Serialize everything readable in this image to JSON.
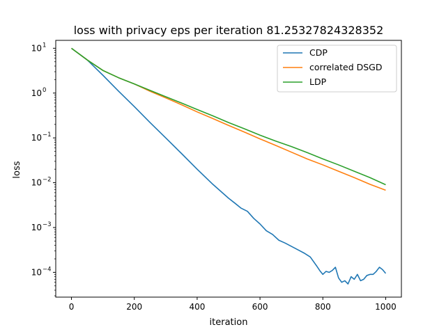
{
  "chart_data": {
    "type": "line",
    "title": "loss with privacy eps per iteration 81.25327824328352",
    "xlabel": "iteration",
    "ylabel": "loss",
    "xlim": [
      -50,
      1050
    ],
    "ylim": [
      2.8e-05,
      15
    ],
    "yscale": "log",
    "grid": false,
    "legend_position": "top-right",
    "x_ticks": [
      0,
      200,
      400,
      600,
      800,
      1000
    ],
    "x_tick_labels": [
      "0",
      "200",
      "400",
      "600",
      "800",
      "1000"
    ],
    "y_ticks": [
      0.0001,
      0.001,
      0.01,
      0.1,
      1,
      10
    ],
    "y_tick_labels": [
      "10",
      "10",
      "10",
      "10",
      "10",
      "10"
    ],
    "y_tick_exponents": [
      "−4",
      "−3",
      "−2",
      "−1",
      "0",
      "1"
    ],
    "series": [
      {
        "name": "CDP",
        "color": "#1f77b4",
        "x": [
          0,
          50,
          100,
          150,
          200,
          250,
          300,
          350,
          400,
          450,
          500,
          520,
          540,
          560,
          580,
          600,
          620,
          640,
          660,
          680,
          700,
          720,
          740,
          760,
          780,
          790,
          800,
          810,
          820,
          830,
          840,
          850,
          860,
          870,
          880,
          890,
          900,
          910,
          920,
          930,
          940,
          950,
          960,
          970,
          980,
          990,
          1000
        ],
        "y": [
          10,
          5.5,
          2.5,
          1.1,
          0.5,
          0.22,
          0.1,
          0.045,
          0.02,
          0.0092,
          0.0045,
          0.0035,
          0.0027,
          0.0023,
          0.0016,
          0.0012,
          0.00085,
          0.0007,
          0.00052,
          0.00045,
          0.00038,
          0.00032,
          0.00027,
          0.00022,
          0.00014,
          0.00011,
          9e-05,
          0.000105,
          0.0001,
          0.00011,
          0.00013,
          7.5e-05,
          6e-05,
          6.5e-05,
          5.5e-05,
          8e-05,
          7e-05,
          9e-05,
          6.5e-05,
          7e-05,
          8.5e-05,
          9e-05,
          9e-05,
          0.000105,
          0.00013,
          0.000115,
          9.5e-05
        ]
      },
      {
        "name": "correlated DSGD",
        "color": "#ff7f0e",
        "x": [
          0,
          50,
          100,
          150,
          200,
          250,
          300,
          350,
          400,
          450,
          500,
          550,
          600,
          650,
          700,
          750,
          800,
          850,
          900,
          950,
          1000
        ],
        "y": [
          10,
          5.5,
          3.2,
          2.2,
          1.6,
          1.1,
          0.78,
          0.55,
          0.38,
          0.27,
          0.19,
          0.135,
          0.095,
          0.068,
          0.048,
          0.034,
          0.025,
          0.018,
          0.013,
          0.0092,
          0.0068
        ]
      },
      {
        "name": "LDP",
        "color": "#2ca02c",
        "x": [
          0,
          50,
          100,
          150,
          200,
          250,
          300,
          350,
          400,
          450,
          500,
          550,
          600,
          650,
          700,
          750,
          800,
          850,
          900,
          950,
          1000
        ],
        "y": [
          10,
          5.5,
          3.2,
          2.2,
          1.6,
          1.15,
          0.83,
          0.6,
          0.43,
          0.31,
          0.22,
          0.16,
          0.115,
          0.085,
          0.064,
          0.047,
          0.034,
          0.025,
          0.018,
          0.013,
          0.009
        ]
      }
    ]
  }
}
